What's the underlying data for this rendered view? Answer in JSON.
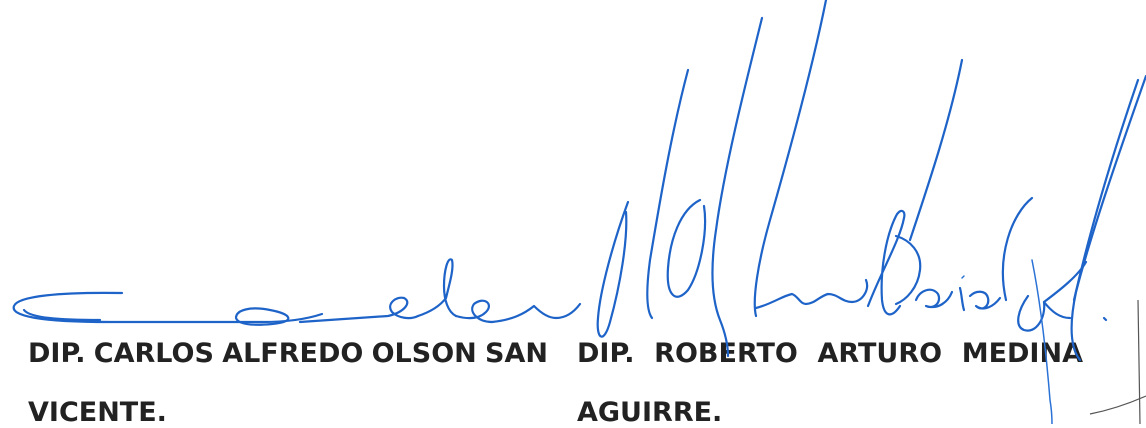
{
  "signatories": [
    {
      "name_words": [
        "DIP.",
        "CARLOS",
        "ALFREDO",
        "OLSON",
        "SAN"
      ],
      "name_line2": "VICENTE."
    },
    {
      "name_words": [
        "DIP.",
        "ROBERTO",
        "ARTURO",
        "MEDINA"
      ],
      "name_line2": "AGUIRRE."
    }
  ],
  "ink_color": "#1e63c8"
}
